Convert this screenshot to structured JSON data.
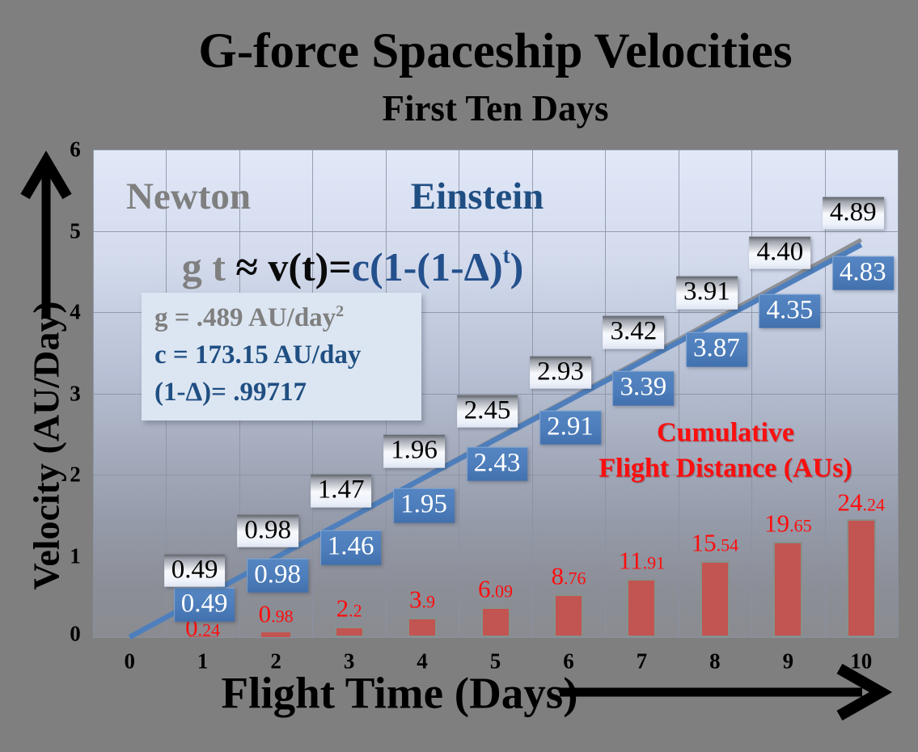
{
  "title": "G-force Spaceship Velocities",
  "subtitle": "First Ten Days",
  "legend": {
    "newton": "Newton",
    "einstein": "Einstein"
  },
  "equation": {
    "newton_lhs": "g t",
    "approx": " ≈ ",
    "einstein_lhs": "v(t)=",
    "einstein_rhs_main": "c(1-(1-Δ)",
    "einstein_rhs_exp": "t",
    "einstein_rhs_close": ")"
  },
  "params": {
    "g_line": "g = .489 AU/day",
    "g_exp": "2",
    "c_line": "c = 173.15 AU/day",
    "delta_line": "(1-Δ)= .99717"
  },
  "bar_annotation": {
    "line1": "Cumulative",
    "line2": "Flight Distance (AUs)"
  },
  "colors": {
    "background": "#7f7f7f",
    "newton_line": "#8e9095",
    "einstein_line": "#4e7fbc",
    "einstein_label_bg": "#4d7dbb",
    "bar_fill": "#c25451",
    "red_text": "#fe0d0d",
    "blue_text": "#1f4e82",
    "gray_text": "#7f7f7f"
  },
  "x_axis": {
    "ticks": [
      "0",
      "1",
      "2",
      "3",
      "4",
      "5",
      "6",
      "7",
      "8",
      "9",
      "10"
    ]
  },
  "y_axis": {
    "ticks": [
      "0",
      "1",
      "2",
      "3",
      "4",
      "5",
      "6"
    ]
  },
  "chart_data": {
    "type": "combo (two line series + one bar series)",
    "title": "G-force Spaceship Velocities — First Ten Days",
    "x": [
      0,
      1,
      2,
      3,
      4,
      5,
      6,
      7,
      8,
      9,
      10
    ],
    "xlabel": "Flight Time (Days)",
    "ylabel": "Velocity (AU/Day)",
    "ylim": [
      0,
      6
    ],
    "bar_axis_range": [
      0,
      100
    ],
    "grid": true,
    "series": [
      {
        "name": "Newton",
        "type": "line",
        "color": "#8e9095",
        "values": [
          0,
          0.49,
          0.98,
          1.47,
          1.96,
          2.45,
          2.93,
          3.42,
          3.91,
          4.4,
          4.89
        ],
        "labels": [
          "",
          "0.49",
          "0.98",
          "1.47",
          "1.96",
          "2.45",
          "2.93",
          "3.42",
          "3.91",
          "4.40",
          "4.89"
        ]
      },
      {
        "name": "Einstein",
        "type": "line",
        "color": "#4e7fbc",
        "values": [
          0,
          0.49,
          0.98,
          1.46,
          1.95,
          2.43,
          2.91,
          3.39,
          3.87,
          4.35,
          4.83
        ],
        "labels": [
          "",
          "0.49",
          "0.98",
          "1.46",
          "1.95",
          "2.43",
          "2.91",
          "3.39",
          "3.87",
          "4.35",
          "4.83"
        ]
      },
      {
        "name": "Cumulative Flight Distance (AUs)",
        "type": "bar",
        "color": "#c25451",
        "values": [
          null,
          0.24,
          0.98,
          2.2,
          3.9,
          6.09,
          8.76,
          11.91,
          15.54,
          19.65,
          24.24
        ],
        "labels": [
          "",
          "0.24",
          "0.98",
          "2.2",
          "3.9",
          "6.09",
          "8.76",
          "11.91",
          "15.54",
          "19.65",
          "24.24"
        ]
      }
    ]
  }
}
